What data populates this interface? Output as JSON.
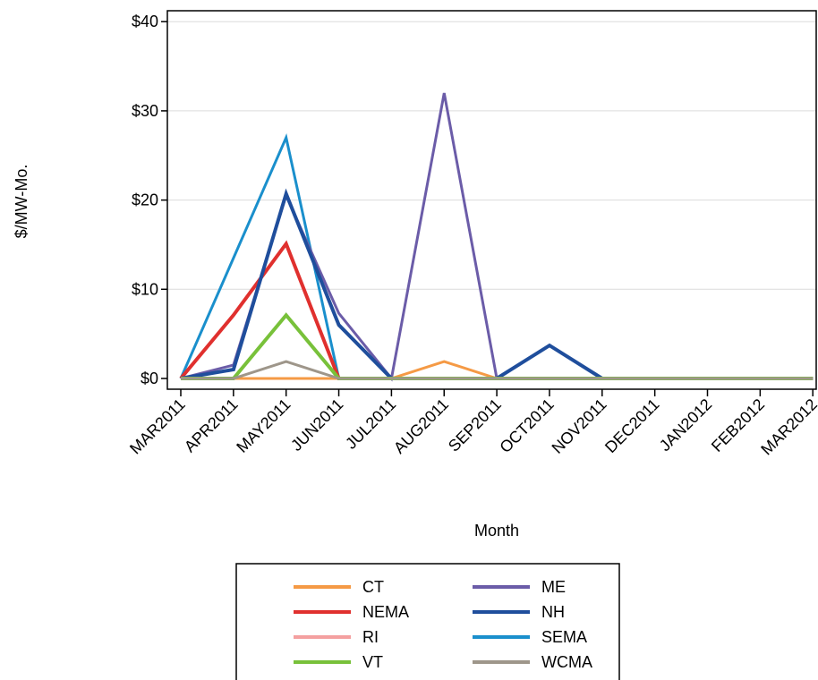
{
  "chart_data": {
    "type": "line",
    "title": "",
    "xlabel": "Month",
    "ylabel": "$/MW-Mo.",
    "categories": [
      "MAR2011",
      "APR2011",
      "MAY2011",
      "JUN2011",
      "JUL2011",
      "AUG2011",
      "SEP2011",
      "OCT2011",
      "NOV2011",
      "DEC2011",
      "JAN2012",
      "FEB2012",
      "MAR2012"
    ],
    "ylim": [
      0,
      40
    ],
    "yticks": [
      0,
      10,
      20,
      30,
      40
    ],
    "ytick_labels": [
      "$0",
      "$10",
      "$20",
      "$30",
      "$40"
    ],
    "grid": "horizontal",
    "legend_placement": "bottom-center",
    "series": [
      {
        "name": "CT",
        "color": "#f59a45",
        "width": 3,
        "values": [
          0,
          0,
          0,
          0,
          0,
          1.9,
          0,
          0,
          0,
          0,
          0,
          0,
          0
        ]
      },
      {
        "name": "ME",
        "color": "#6b5ca8",
        "width": 3,
        "values": [
          0,
          1.5,
          20.5,
          7.3,
          0,
          32,
          0,
          0,
          0,
          0,
          0,
          0,
          0
        ]
      },
      {
        "name": "NEMA",
        "color": "#e0302e",
        "width": 4,
        "values": [
          0,
          7.1,
          15.1,
          0,
          0,
          0,
          0,
          0,
          0,
          0,
          0,
          0,
          0
        ]
      },
      {
        "name": "NH",
        "color": "#1f4e9c",
        "width": 4,
        "values": [
          0,
          1.0,
          20.7,
          6.0,
          0,
          0,
          0,
          3.7,
          0,
          0,
          0,
          0,
          0
        ]
      },
      {
        "name": "RI",
        "color": "#f4a0a0",
        "width": 3,
        "values": [
          0,
          0,
          0,
          0,
          0,
          0,
          0,
          0,
          0,
          0,
          0,
          0,
          0
        ]
      },
      {
        "name": "SEMA",
        "color": "#1a8fcc",
        "width": 3,
        "values": [
          0,
          13.5,
          27,
          0,
          0,
          0,
          0,
          0,
          0,
          0,
          0,
          0,
          0
        ]
      },
      {
        "name": "VT",
        "color": "#78c13a",
        "width": 4,
        "values": [
          0,
          0,
          7.1,
          0,
          0,
          0,
          0,
          0,
          0,
          0,
          0,
          0,
          0
        ]
      },
      {
        "name": "WCMA",
        "color": "#9e968a",
        "width": 3,
        "values": [
          0,
          0,
          1.9,
          0,
          0,
          0,
          0,
          0,
          0,
          0,
          0,
          0,
          0
        ]
      }
    ],
    "draw_order": [
      "RI",
      "CT",
      "SEMA",
      "NEMA",
      "ME",
      "NH",
      "VT",
      "WCMA"
    ],
    "legend_layout": [
      [
        "CT",
        "ME"
      ],
      [
        "NEMA",
        "NH"
      ],
      [
        "RI",
        "SEMA"
      ],
      [
        "VT",
        "WCMA"
      ]
    ]
  }
}
